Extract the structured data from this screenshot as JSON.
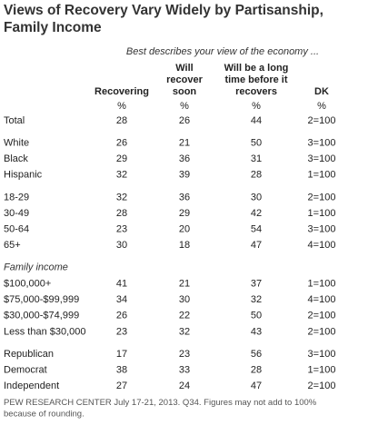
{
  "title_lines": [
    "Views of Recovery Vary Widely by Partisanship,",
    "Family Income"
  ],
  "subtitle": "Best describes your view of the economy ...",
  "columns": [
    {
      "lines": [
        "Recovering"
      ],
      "unit": "%"
    },
    {
      "lines": [
        "Will",
        "recover",
        "soon"
      ],
      "unit": "%"
    },
    {
      "lines": [
        "Will be a long",
        "time before it",
        "recovers"
      ],
      "unit": "%"
    },
    {
      "lines": [
        "DK"
      ],
      "unit": "%"
    }
  ],
  "sections": [
    {
      "rows": [
        {
          "label": "Total",
          "cells": [
            28,
            26,
            44,
            "2=100"
          ]
        }
      ]
    },
    {
      "rows": [
        {
          "label": "White",
          "cells": [
            26,
            21,
            50,
            "3=100"
          ]
        },
        {
          "label": "Black",
          "cells": [
            29,
            36,
            31,
            "3=100"
          ]
        },
        {
          "label": "Hispanic",
          "cells": [
            32,
            39,
            28,
            "1=100"
          ]
        }
      ]
    },
    {
      "rows": [
        {
          "label": "18-29",
          "cells": [
            32,
            36,
            30,
            "2=100"
          ]
        },
        {
          "label": "30-49",
          "cells": [
            28,
            29,
            42,
            "1=100"
          ]
        },
        {
          "label": "50-64",
          "cells": [
            23,
            20,
            54,
            "3=100"
          ]
        },
        {
          "label": "65+",
          "cells": [
            30,
            18,
            47,
            "4=100"
          ]
        }
      ]
    },
    {
      "heading": "Family income",
      "rows": [
        {
          "label": "$100,000+",
          "cells": [
            41,
            21,
            37,
            "1=100"
          ]
        },
        {
          "label": "$75,000-$99,999",
          "cells": [
            34,
            30,
            32,
            "4=100"
          ]
        },
        {
          "label": "$30,000-$74,999",
          "cells": [
            26,
            22,
            50,
            "2=100"
          ]
        },
        {
          "label": "Less than $30,000",
          "cells": [
            23,
            32,
            43,
            "2=100"
          ]
        }
      ]
    },
    {
      "rows": [
        {
          "label": "Republican",
          "cells": [
            17,
            23,
            56,
            "3=100"
          ]
        },
        {
          "label": "Democrat",
          "cells": [
            38,
            33,
            28,
            "1=100"
          ]
        },
        {
          "label": "Independent",
          "cells": [
            27,
            24,
            47,
            "2=100"
          ]
        }
      ]
    }
  ],
  "footnote_lines": [
    "PEW RESEARCH CENTER July 17-21, 2013. Q34. Figures may not add to 100%",
    "because of rounding."
  ]
}
